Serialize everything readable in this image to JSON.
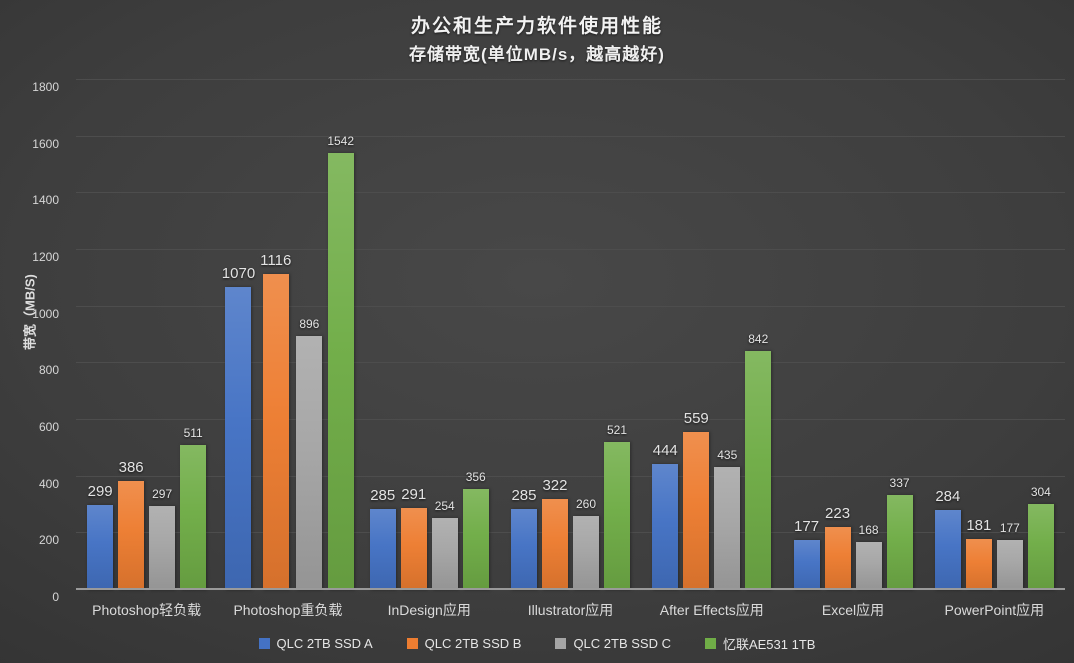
{
  "header": {
    "title": "办公和生产力软件使用性能",
    "subtitle": "存储带宽(单位MB/s，越高越好)"
  },
  "chart_data": {
    "type": "bar",
    "title": "办公和生产力软件使用性能",
    "subtitle": "存储带宽(单位MB/s，越高越好)",
    "xlabel": "",
    "ylabel": "带宽（MB/S)",
    "ylim": [
      0,
      1800
    ],
    "ytick_step": 200,
    "grid": true,
    "legend_position": "bottom",
    "categories": [
      "Photoshop轻负载",
      "Photoshop重负载",
      "InDesign应用",
      "Illustrator应用",
      "After Effects应用",
      "Excel应用",
      "PowerPoint应用"
    ],
    "series": [
      {
        "name": "QLC 2TB SSD A",
        "color": "#4472c4",
        "label_size": "large",
        "values": [
          299,
          1070,
          285,
          285,
          444,
          177,
          284
        ]
      },
      {
        "name": "QLC 2TB SSD B",
        "color": "#ed7d31",
        "label_size": "large",
        "values": [
          386,
          1116,
          291,
          322,
          559,
          223,
          181
        ]
      },
      {
        "name": "QLC 2TB SSD C",
        "color": "#a5a5a5",
        "label_size": "small",
        "values": [
          297,
          896,
          254,
          260,
          435,
          168,
          177
        ]
      },
      {
        "name": "忆联AE531 1TB",
        "color": "#70ad47",
        "label_size": "small",
        "values": [
          511,
          1542,
          356,
          521,
          842,
          337,
          304
        ]
      }
    ]
  },
  "theme": {
    "gridline_color": "#4d4d4d",
    "axis_line_color": "#9a9a9a",
    "text_color": "#e2e2e2"
  }
}
